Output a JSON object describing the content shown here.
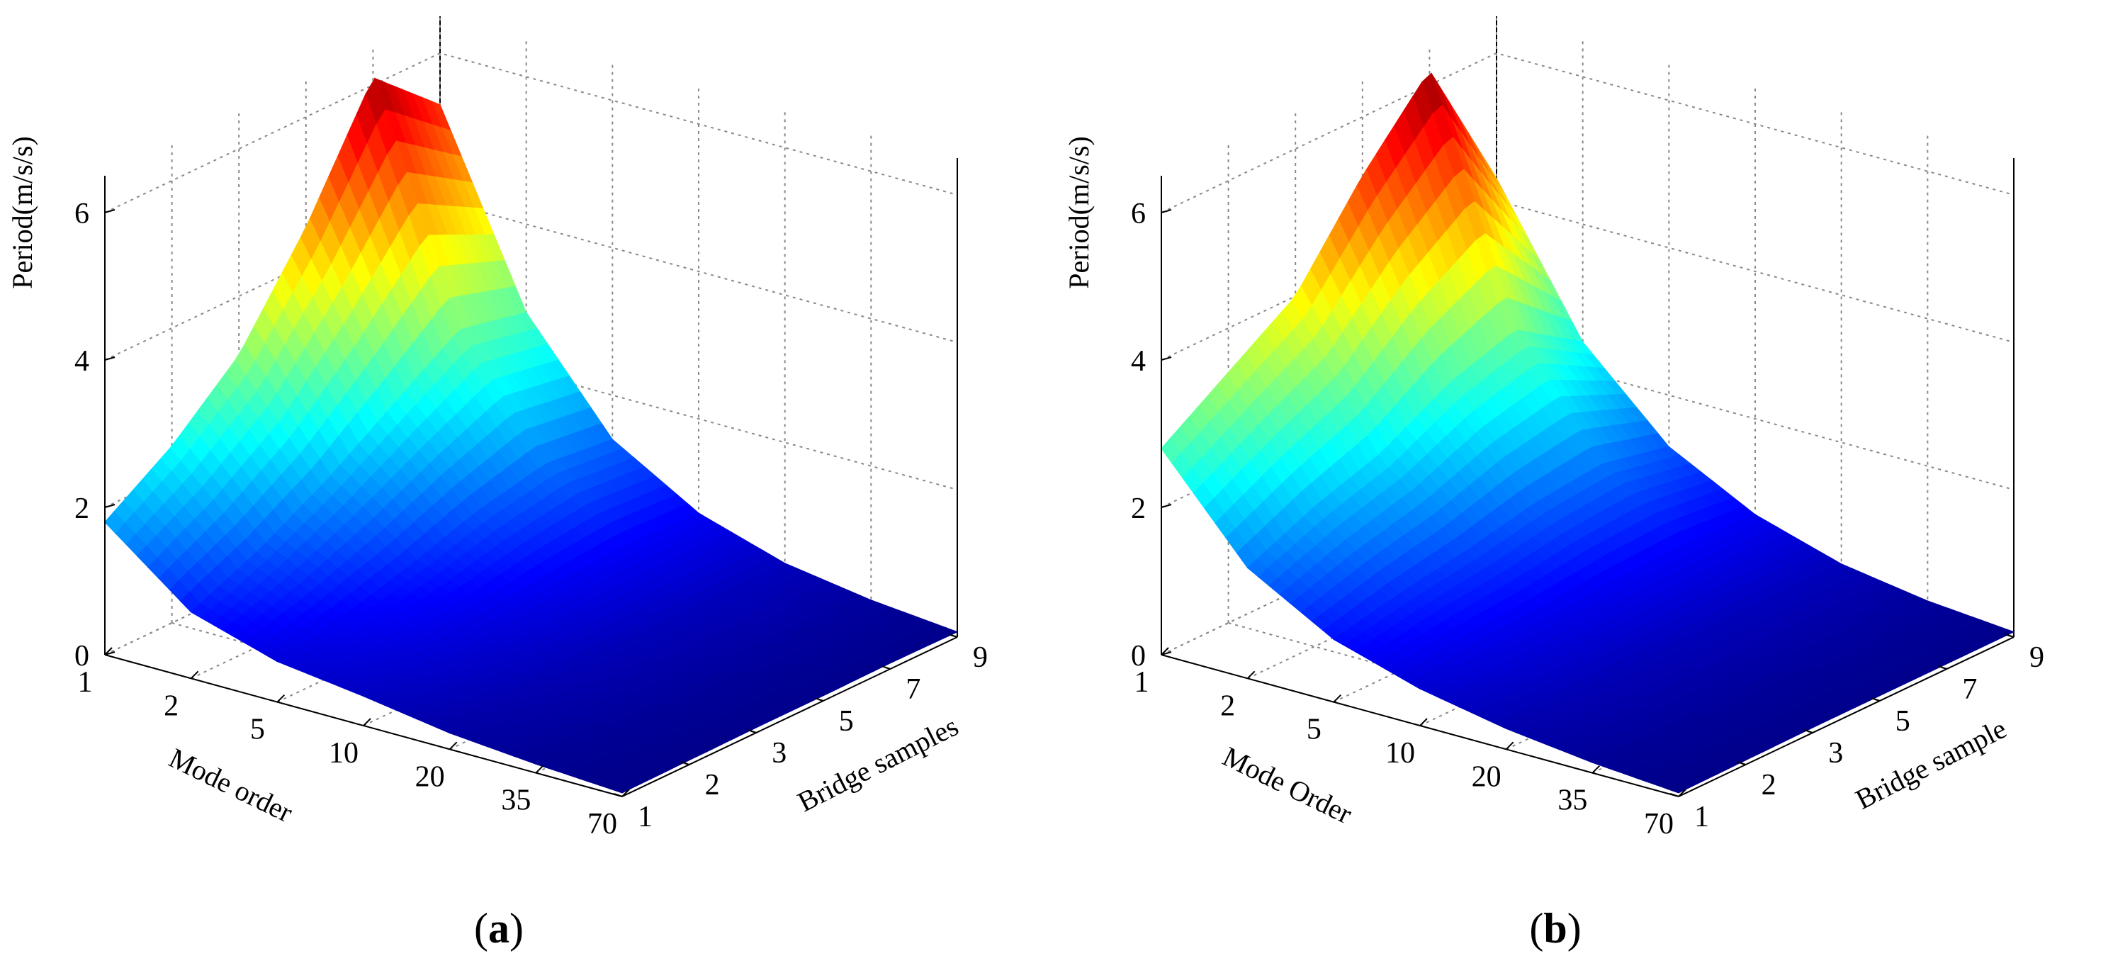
{
  "colors": {
    "low": "#00008f",
    "mid": "#00ffff",
    "high": "#800000",
    "grid": "#888888",
    "axis": "#000000"
  },
  "chart_data": [
    {
      "type": "surface3d",
      "caption": "(a)",
      "caption_letter": "a",
      "xlabel": "Mode order",
      "ylabel": "Bridge samples",
      "zlabel": "Period(m/s/s)",
      "x_ticks": [
        "1",
        "2",
        "5",
        "10",
        "20",
        "35",
        "70"
      ],
      "y_ticks": [
        "1",
        "2",
        "3",
        "5",
        "7",
        "9"
      ],
      "z_ticks": [
        "0",
        "2",
        "4",
        "6"
      ],
      "zlim": [
        0,
        6.5
      ],
      "grid": true,
      "colormap": "jet",
      "surface_rows": [
        {
          "bridge_sample": "1",
          "values": [
            1.8,
            0.9,
            0.55,
            0.4,
            0.22,
            0.12,
            0.05
          ]
        },
        {
          "bridge_sample": "2",
          "values": [
            2.4,
            1.3,
            0.75,
            0.5,
            0.28,
            0.15,
            0.06
          ]
        },
        {
          "bridge_sample": "3",
          "values": [
            3.2,
            1.8,
            1.0,
            0.6,
            0.33,
            0.17,
            0.07
          ]
        },
        {
          "bridge_sample": "5",
          "values": [
            4.5,
            2.4,
            1.3,
            0.7,
            0.36,
            0.18,
            0.07
          ]
        },
        {
          "bridge_sample": "7",
          "values": [
            6.1,
            3.0,
            1.5,
            0.75,
            0.38,
            0.19,
            0.08
          ]
        },
        {
          "bridge_sample": "9",
          "values": [
            5.3,
            2.8,
            1.4,
            0.72,
            0.36,
            0.18,
            0.07
          ]
        }
      ]
    },
    {
      "type": "surface3d",
      "caption": "(b)",
      "caption_letter": "b",
      "xlabel": "Mode Order",
      "ylabel": "Bridge sample",
      "zlabel": "Period(m/s/s)",
      "x_ticks": [
        "1",
        "2",
        "5",
        "10",
        "20",
        "35",
        "70"
      ],
      "y_ticks": [
        "1",
        "2",
        "3",
        "5",
        "7",
        "9"
      ],
      "z_ticks": [
        "0",
        "2",
        "4",
        "6"
      ],
      "zlim": [
        0,
        6.5
      ],
      "grid": true,
      "colormap": "jet",
      "surface_rows": [
        {
          "bridge_sample": "1",
          "values": [
            2.8,
            1.5,
            0.85,
            0.5,
            0.28,
            0.14,
            0.05
          ]
        },
        {
          "bridge_sample": "2",
          "values": [
            3.4,
            1.9,
            1.05,
            0.6,
            0.32,
            0.16,
            0.06
          ]
        },
        {
          "bridge_sample": "3",
          "values": [
            4.0,
            2.2,
            1.2,
            0.65,
            0.34,
            0.17,
            0.07
          ]
        },
        {
          "bridge_sample": "5",
          "values": [
            5.2,
            2.7,
            1.4,
            0.72,
            0.36,
            0.18,
            0.07
          ]
        },
        {
          "bridge_sample": "7",
          "values": [
            6.2,
            3.0,
            1.5,
            0.75,
            0.37,
            0.18,
            0.07
          ]
        },
        {
          "bridge_sample": "9",
          "values": [
            4.3,
            2.4,
            1.3,
            0.7,
            0.35,
            0.17,
            0.07
          ]
        }
      ]
    }
  ]
}
